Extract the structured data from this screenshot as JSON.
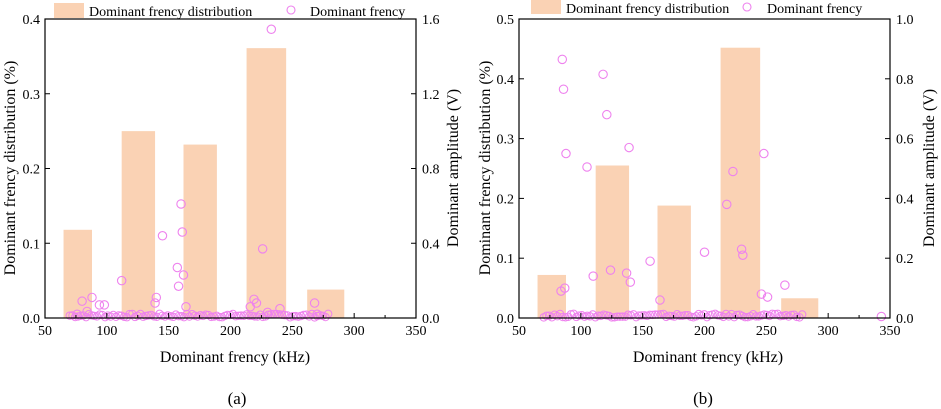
{
  "colors": {
    "bar": "#fad2b4",
    "marker": "#ee82ee",
    "axis": "#000000"
  },
  "chart_data": [
    {
      "type": "bar+scatter",
      "caption": "(a)",
      "xlabel": "Dominant frency (kHz)",
      "ylabel_left": "Dominant frency distribution (%)",
      "ylabel_right": "Dominant amplitude (V)",
      "legend": {
        "bar": "Dominant frency distribution",
        "scatter": "Dominant frency"
      },
      "xlim": [
        50,
        350
      ],
      "xticks": [
        50,
        100,
        150,
        200,
        250,
        300,
        350
      ],
      "ylim_left": [
        0,
        0.4
      ],
      "yticks_left": [
        0.0,
        0.1,
        0.2,
        0.3,
        0.4
      ],
      "ylim_right": [
        0,
        1.6
      ],
      "yticks_right": [
        0.0,
        0.4,
        0.8,
        1.2,
        1.6
      ],
      "tick_format_left": 1,
      "tick_format_right": 1,
      "bars": [
        {
          "x0": 65,
          "x1": 88,
          "value": 0.118
        },
        {
          "x0": 112,
          "x1": 139,
          "value": 0.25
        },
        {
          "x0": 162,
          "x1": 189,
          "value": 0.232
        },
        {
          "x0": 213,
          "x1": 245,
          "value": 0.361
        },
        {
          "x0": 262,
          "x1": 292,
          "value": 0.038
        }
      ],
      "scatter": [
        [
          76,
          0.02
        ],
        [
          80,
          0.09
        ],
        [
          84,
          0.035
        ],
        [
          88,
          0.11
        ],
        [
          94,
          0.07
        ],
        [
          98,
          0.07
        ],
        [
          112,
          0.2
        ],
        [
          145,
          0.44
        ],
        [
          139,
          0.08
        ],
        [
          140,
          0.11
        ],
        [
          157,
          0.27
        ],
        [
          158,
          0.17
        ],
        [
          160,
          0.61
        ],
        [
          161,
          0.46
        ],
        [
          162,
          0.23
        ],
        [
          164,
          0.06
        ],
        [
          216,
          0.06
        ],
        [
          219,
          0.1
        ],
        [
          221,
          0.08
        ],
        [
          226,
          0.37
        ],
        [
          230,
          0.03
        ],
        [
          233,
          1.545
        ],
        [
          240,
          0.05
        ],
        [
          268,
          0.08
        ],
        [
          270,
          0.02
        ]
      ],
      "baseline_cluster": [
        70,
        280
      ]
    },
    {
      "type": "bar+scatter",
      "caption": "(b)",
      "xlabel": "Dominant frency (kHz)",
      "ylabel_left": "Dominant frency distribution (%)",
      "ylabel_right": "Dominant amplitude (V)",
      "legend": {
        "bar": "Dominant frency distribution",
        "scatter": "Dominant frency"
      },
      "xlim": [
        50,
        350
      ],
      "xticks": [
        50,
        100,
        150,
        200,
        250,
        300,
        350
      ],
      "ylim_left": [
        0,
        0.5
      ],
      "yticks_left": [
        0.0,
        0.1,
        0.2,
        0.3,
        0.4,
        0.5
      ],
      "ylim_right": [
        0,
        1.0
      ],
      "yticks_right": [
        0.0,
        0.2,
        0.4,
        0.6,
        0.8,
        1.0
      ],
      "tick_format_left": 1,
      "tick_format_right": 1,
      "bars": [
        {
          "x0": 65,
          "x1": 88,
          "value": 0.072
        },
        {
          "x0": 112,
          "x1": 139,
          "value": 0.255
        },
        {
          "x0": 162,
          "x1": 189,
          "value": 0.188
        },
        {
          "x0": 213,
          "x1": 245,
          "value": 0.452
        },
        {
          "x0": 262,
          "x1": 292,
          "value": 0.033
        }
      ],
      "scatter": [
        [
          85,
          0.865
        ],
        [
          86,
          0.765
        ],
        [
          88,
          0.55
        ],
        [
          84,
          0.09
        ],
        [
          87,
          0.1
        ],
        [
          105,
          0.505
        ],
        [
          110,
          0.14
        ],
        [
          118,
          0.815
        ],
        [
          121,
          0.68
        ],
        [
          124,
          0.16
        ],
        [
          139,
          0.57
        ],
        [
          137,
          0.15
        ],
        [
          140,
          0.12
        ],
        [
          156,
          0.19
        ],
        [
          164,
          0.06
        ],
        [
          200,
          0.22
        ],
        [
          218,
          0.38
        ],
        [
          223,
          0.49
        ],
        [
          230,
          0.23
        ],
        [
          231,
          0.21
        ],
        [
          248,
          0.55
        ],
        [
          246,
          0.08
        ],
        [
          251,
          0.07
        ],
        [
          265,
          0.11
        ],
        [
          343,
          0.005
        ]
      ],
      "baseline_cluster": [
        70,
        280
      ]
    }
  ]
}
